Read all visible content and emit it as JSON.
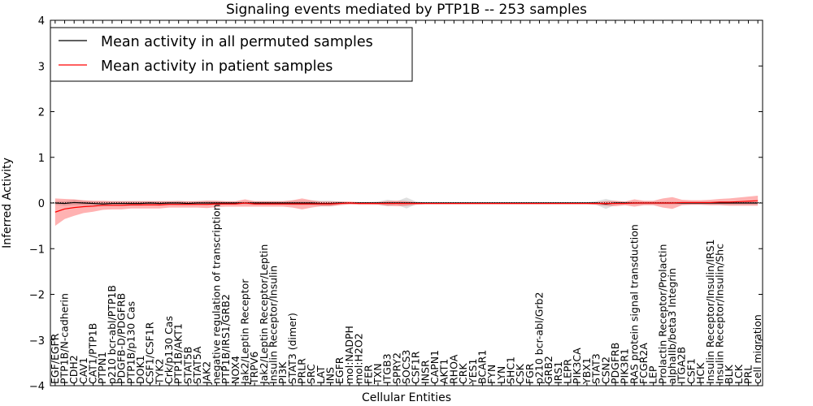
{
  "chart_data": {
    "type": "line",
    "title": "Signaling events mediated by PTP1B -- 253 samples",
    "xlabel": "Cellular Entities",
    "ylabel": "Inferred Activity",
    "ylim": [
      -4,
      4
    ],
    "yticks": [
      "−4",
      "−3",
      "−2",
      "−1",
      "0",
      "1",
      "2",
      "3",
      "4"
    ],
    "legend_position": "top-left",
    "categories": [
      "EGF/EGFR",
      "PTP1B/N-cadherin",
      "CDH2",
      "CAV1",
      "CAT1/PTP1B",
      "PTPN1",
      "p210 bcr-abl/PTP1B",
      "PDGFB-D/PDGFRB",
      "PTP1B/p130 Cas",
      "DOK1",
      "CSF1/CSF1R",
      "TYK2",
      "Crk/p130 Cas",
      "PTP1B/AKT1",
      "STAT5B",
      "STAT5A",
      "JAK2",
      "negative regulation of transcription",
      "PTP1B/IRS1/GRB2",
      "NOX4",
      "Jak2/Leptin Receptor",
      "TRPV6",
      "Jak2/Leptin Receptor/Leptin",
      "Insulin Receptor/Insulin",
      "PI3K",
      "STAT3 (dimer)",
      "PRLR",
      "SRC",
      "LAT",
      "INS",
      "EGFR",
      "mol:NADPH",
      "mol:H2O2",
      "FER",
      "TXN",
      "ITGB3",
      "SPRY2",
      "SOCS3",
      "CSF1R",
      "INSR",
      "CAPN1",
      "AKT1",
      "RHOA",
      "CRK",
      "YES1",
      "BCAR1",
      "FYN",
      "LYN",
      "SHC1",
      "CSK",
      "FGR",
      "p210 bcr-abl/Grb2",
      "GRB2",
      "IRS1",
      "LEPR",
      "PIK3CA",
      "YBX1",
      "STAT3",
      "CSN2",
      "PDGFRB",
      "PIK3R1",
      "RAS protein signal transduction",
      "FCGR2A",
      "LEP",
      "Prolactin Receptor/Prolactin",
      "alphaIIb/beta3 Integrin",
      "ITGA2B",
      "CSF1",
      "HCK",
      "Insulin Receptor/Insulin/IRS1",
      "Insulin Receptor/Insulin/Shc",
      "BLK",
      "LCK",
      "PRL",
      "cell migration"
    ],
    "series": [
      {
        "name": "Mean activity in all permuted samples",
        "color": "#000000",
        "band_color": "#b0b0b0",
        "values": [
          0,
          -0.01,
          0.01,
          0,
          -0.01,
          -0.02,
          -0.01,
          -0.01,
          -0.01,
          -0.01,
          0,
          -0.01,
          0,
          0,
          -0.01,
          0,
          0,
          0,
          0,
          0,
          0,
          0,
          0,
          0,
          0,
          0,
          0,
          0,
          -0.01,
          -0.01,
          0,
          0,
          0,
          0,
          0,
          0,
          0,
          0,
          0,
          0,
          0,
          0,
          0,
          0,
          0,
          0,
          0,
          0,
          0,
          0,
          0,
          0,
          0,
          0,
          0,
          0,
          0,
          0,
          -0.02,
          0,
          0,
          0,
          0,
          0,
          0,
          0,
          0,
          0,
          0,
          0,
          0,
          0,
          0,
          0,
          0
        ],
        "band": [
          0.04,
          0.05,
          0.06,
          0.05,
          0.05,
          0.05,
          0.05,
          0.05,
          0.05,
          0.05,
          0.04,
          0.05,
          0.04,
          0.05,
          0.04,
          0.04,
          0.05,
          0.04,
          0.03,
          0.03,
          0.03,
          0.04,
          0.04,
          0.04,
          0.04,
          0.05,
          0.05,
          0.05,
          0.06,
          0.06,
          0.03,
          0.02,
          0.02,
          0.02,
          0.03,
          0.07,
          0.04,
          0.12,
          0.03,
          0.02,
          0.02,
          0.02,
          0.02,
          0.02,
          0.02,
          0.02,
          0.02,
          0.02,
          0.02,
          0.02,
          0.02,
          0.02,
          0.02,
          0.02,
          0.02,
          0.02,
          0.02,
          0.04,
          0.11,
          0.04,
          0.03,
          0.03,
          0.03,
          0.03,
          0.03,
          0.03,
          0.03,
          0.03,
          0.03,
          0.03,
          0.03,
          0.03,
          0.03,
          0.03,
          0.03
        ]
      },
      {
        "name": "Mean activity in patient samples",
        "color": "#ff0000",
        "band_color": "#ff0000",
        "values": [
          -0.2,
          -0.13,
          -0.1,
          -0.08,
          -0.07,
          -0.05,
          -0.05,
          -0.05,
          -0.04,
          -0.04,
          -0.04,
          -0.04,
          -0.03,
          -0.03,
          -0.03,
          -0.03,
          -0.03,
          -0.02,
          -0.02,
          -0.02,
          0,
          -0.02,
          -0.02,
          -0.02,
          -0.02,
          -0.02,
          -0.02,
          -0.02,
          -0.02,
          -0.02,
          -0.01,
          0,
          -0.01,
          -0.01,
          -0.01,
          -0.01,
          -0.01,
          -0.01,
          -0.01,
          -0.01,
          -0.01,
          -0.01,
          -0.01,
          -0.01,
          -0.01,
          -0.01,
          -0.01,
          -0.01,
          -0.01,
          -0.01,
          -0.01,
          -0.01,
          -0.01,
          -0.01,
          -0.01,
          -0.01,
          -0.01,
          -0.01,
          -0.01,
          -0.01,
          -0.01,
          0,
          0,
          0,
          0,
          0,
          0.01,
          0.01,
          0.01,
          0.01,
          0.02,
          0.02,
          0.03,
          0.04,
          0.05
        ],
        "band": [
          0.3,
          0.22,
          0.18,
          0.14,
          0.12,
          0.1,
          0.09,
          0.09,
          0.08,
          0.08,
          0.08,
          0.08,
          0.07,
          0.07,
          0.07,
          0.07,
          0.08,
          0.07,
          0.06,
          0.06,
          0.08,
          0.06,
          0.06,
          0.06,
          0.06,
          0.08,
          0.12,
          0.08,
          0.05,
          0.05,
          0.04,
          0.03,
          0.03,
          0.03,
          0.03,
          0.05,
          0.06,
          0.05,
          0.03,
          0.02,
          0.02,
          0.02,
          0.02,
          0.02,
          0.02,
          0.02,
          0.02,
          0.02,
          0.02,
          0.02,
          0.02,
          0.02,
          0.02,
          0.02,
          0.02,
          0.02,
          0.02,
          0.03,
          0.05,
          0.06,
          0.04,
          0.08,
          0.05,
          0.05,
          0.1,
          0.13,
          0.06,
          0.05,
          0.05,
          0.06,
          0.07,
          0.08,
          0.09,
          0.1,
          0.11
        ]
      }
    ]
  }
}
